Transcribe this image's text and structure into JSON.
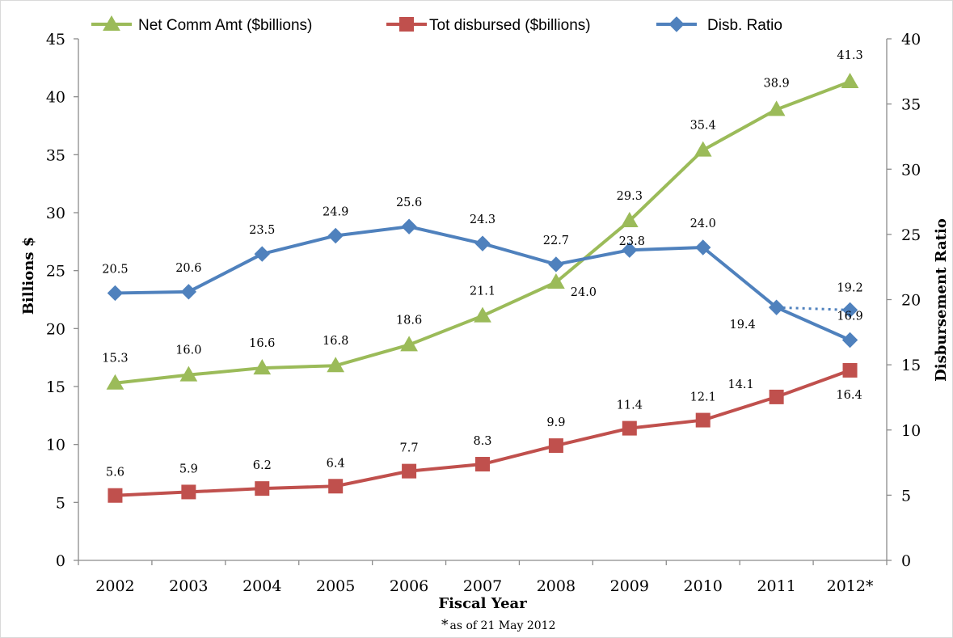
{
  "chart_data": {
    "type": "line",
    "categories": [
      "2002",
      "2003",
      "2004",
      "2005",
      "2006",
      "2007",
      "2008",
      "2009",
      "2010",
      "2011",
      "2012*"
    ],
    "xlabel": "Fiscal Year",
    "ylabel": "Billions $",
    "y2label": "Disbursement Ratio",
    "ylim": [
      0,
      45
    ],
    "ytick_step": 5,
    "y2lim": [
      0,
      40
    ],
    "y2tick_step": 5,
    "grid": false,
    "legend_position": "top",
    "footnote": "as of 21 May 2012",
    "footnote_mark": "*",
    "series": [
      {
        "name": "Net Comm Amt ($billions)",
        "axis": "left",
        "marker": "triangle",
        "color": "#9bbb59",
        "values": [
          15.3,
          16.0,
          16.6,
          16.8,
          18.6,
          21.1,
          24.0,
          29.3,
          35.4,
          38.9,
          41.3
        ],
        "labels": [
          "15.3",
          "16.0",
          "16.6",
          "16.8",
          "18.6",
          "21.1",
          "24.0",
          "29.3",
          "35.4",
          "38.9",
          "41.3"
        ]
      },
      {
        "name": "Tot disbursed ($billions)",
        "axis": "left",
        "marker": "square",
        "color": "#c0504d",
        "values": [
          5.6,
          5.9,
          6.2,
          6.4,
          7.7,
          8.3,
          9.9,
          11.4,
          12.1,
          14.1,
          16.4
        ],
        "labels": [
          "5.6",
          "5.9",
          "6.2",
          "6.4",
          "7.7",
          "8.3",
          "9.9",
          "11.4",
          "12.1",
          "14.1",
          "16.4"
        ]
      },
      {
        "name": "Disb. Ratio",
        "axis": "right",
        "marker": "diamond",
        "color": "#4f81bd",
        "values": [
          20.5,
          20.6,
          23.5,
          24.9,
          25.6,
          24.3,
          22.7,
          23.8,
          24.0,
          19.4,
          16.9
        ],
        "labels": [
          "20.5",
          "20.6",
          "23.5",
          "24.9",
          "25.6",
          "24.3",
          "22.7",
          "23.8",
          "24.0",
          "19.4",
          "16.9"
        ],
        "extra_point": {
          "category": "2012*",
          "value": 19.2,
          "label": "19.2",
          "line_style": "dotted"
        }
      }
    ]
  }
}
